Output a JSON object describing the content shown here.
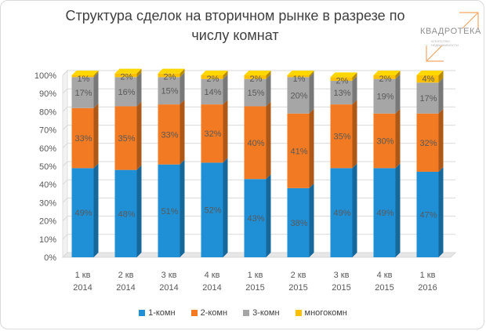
{
  "chart_data": {
    "type": "bar",
    "stacked": true,
    "percent_stacked": true,
    "title": "Структура сделок на вторичном рынке в разрезе по числу комнат",
    "title_lines": [
      "Структура сделок на вторичном рынке в разрезе по",
      "числу комнат"
    ],
    "categories": [
      [
        "1 кв",
        "2014"
      ],
      [
        "2 кв",
        "2014"
      ],
      [
        "3 кв",
        "2014"
      ],
      [
        "4 кв",
        "2014"
      ],
      [
        "1 кв",
        "2015"
      ],
      [
        "2 кв",
        "2015"
      ],
      [
        "3 кв",
        "2015"
      ],
      [
        "4 кв",
        "2015"
      ],
      [
        "1 кв",
        "2016"
      ]
    ],
    "series": [
      {
        "name": "1-комн",
        "color": "#1f8fd6",
        "values": [
          49,
          48,
          51,
          52,
          43,
          38,
          49,
          49,
          47
        ]
      },
      {
        "name": "2-комн",
        "color": "#f27a22",
        "values": [
          33,
          35,
          33,
          32,
          40,
          41,
          35,
          30,
          32
        ]
      },
      {
        "name": "3-комн",
        "color": "#a6a6a6",
        "values": [
          17,
          16,
          15,
          14,
          15,
          20,
          13,
          19,
          17
        ]
      },
      {
        "name": "многокомн",
        "color": "#ffc000",
        "values": [
          1,
          2,
          2,
          2,
          2,
          1,
          2,
          2,
          4
        ]
      }
    ],
    "value_labels": [
      [
        "49%",
        "48%",
        "51%",
        "52%",
        "43%",
        "38%",
        "49%",
        "49%",
        "47%"
      ],
      [
        "33%",
        "35%",
        "33%",
        "32%",
        "40%",
        "41%",
        "35%",
        "30%",
        "32%"
      ],
      [
        "17%",
        "16%",
        "15%",
        "14%",
        "15%",
        "20%",
        "13%",
        "19%",
        "17%"
      ],
      [
        "1%",
        "2%",
        "2%",
        "2%",
        "2%",
        "1%",
        "2%",
        "2%",
        "4%"
      ]
    ],
    "y_ticks": [
      "0%",
      "10%",
      "20%",
      "30%",
      "40%",
      "50%",
      "60%",
      "70%",
      "80%",
      "90%",
      "100%"
    ],
    "ylim": [
      0,
      100
    ],
    "grid": true,
    "legend_position": "bottom",
    "style": "3d-columns"
  },
  "logo": {
    "name": "КВАДРОТЕКА",
    "tagline": [
      "АГЕНТСТВО",
      "НЕДВИЖИМОСТИ"
    ]
  }
}
